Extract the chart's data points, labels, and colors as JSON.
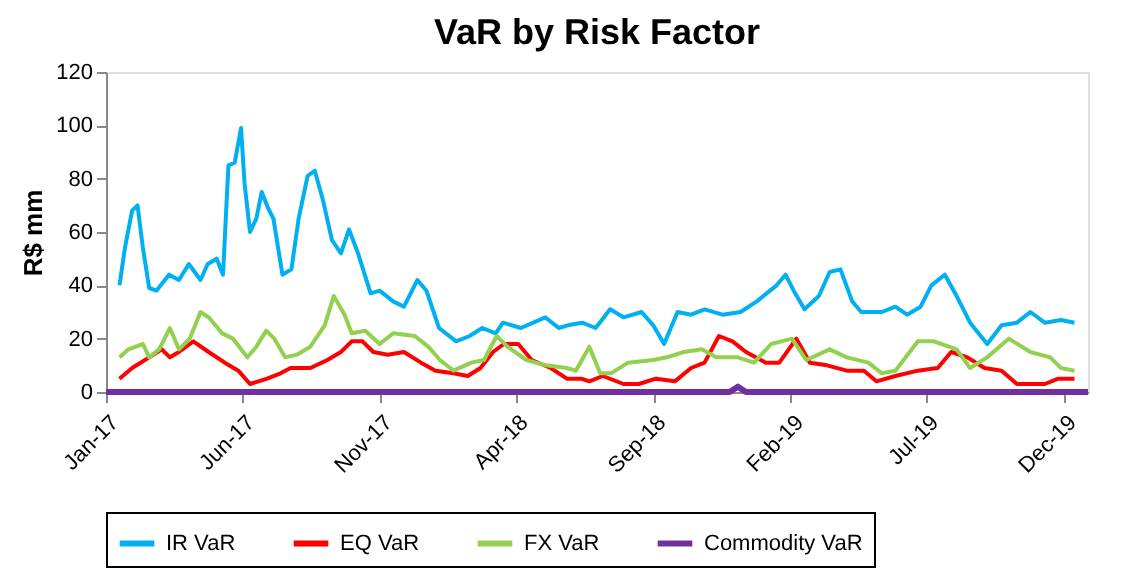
{
  "chart_data": {
    "type": "line",
    "title": "VaR by Risk Factor",
    "ylabel": "R$ mm",
    "xlim": [
      "2017-01-01",
      "2019-12-28"
    ],
    "ylim": [
      0,
      120
    ],
    "yticks": [
      0,
      20,
      40,
      60,
      80,
      100,
      120
    ],
    "xticks": [
      {
        "value": "2017-01-01",
        "label": "Jan-17"
      },
      {
        "value": "2017-06-01",
        "label": "Jun-17"
      },
      {
        "value": "2017-11-01",
        "label": "Nov-17"
      },
      {
        "value": "2018-04-01",
        "label": "Apr-18"
      },
      {
        "value": "2018-09-01",
        "label": "Sep-18"
      },
      {
        "value": "2019-02-01",
        "label": "Feb-19"
      },
      {
        "value": "2019-07-01",
        "label": "Jul-19"
      },
      {
        "value": "2019-12-01",
        "label": "Dec-19"
      }
    ],
    "grid": false,
    "legend": "bottom",
    "marker": "none",
    "line_style": "solid",
    "series": [
      {
        "name": "IR VaR",
        "color": "#00b0f0",
        "x": [
          "2017-01-16",
          "2017-01-22",
          "2017-01-30",
          "2017-02-05",
          "2017-02-11",
          "2017-02-18",
          "2017-02-26",
          "2017-03-12",
          "2017-03-23",
          "2017-04-03",
          "2017-04-16",
          "2017-04-24",
          "2017-05-04",
          "2017-05-11",
          "2017-05-17",
          "2017-05-24",
          "2017-05-31",
          "2017-06-04",
          "2017-06-10",
          "2017-06-17",
          "2017-06-23",
          "2017-06-30",
          "2017-07-06",
          "2017-07-16",
          "2017-07-26",
          "2017-08-03",
          "2017-08-13",
          "2017-08-21",
          "2017-08-30",
          "2017-09-09",
          "2017-09-19",
          "2017-09-28",
          "2017-10-08",
          "2017-10-22",
          "2017-11-01",
          "2017-11-16",
          "2017-11-28",
          "2017-12-13",
          "2017-12-23",
          "2018-01-06",
          "2018-01-25",
          "2018-02-09",
          "2018-02-23",
          "2018-03-10",
          "2018-03-18",
          "2018-04-07",
          "2018-05-04",
          "2018-05-19",
          "2018-05-29",
          "2018-06-14",
          "2018-06-29",
          "2018-07-15",
          "2018-07-30",
          "2018-08-19",
          "2018-09-01",
          "2018-09-13",
          "2018-09-28",
          "2018-10-13",
          "2018-10-28",
          "2018-11-17",
          "2018-12-07",
          "2018-12-25",
          "2019-01-16",
          "2019-01-26",
          "2019-02-04",
          "2019-02-16",
          "2019-03-04",
          "2019-03-16",
          "2019-03-28",
          "2019-04-10",
          "2019-04-20",
          "2019-05-13",
          "2019-05-28",
          "2019-06-10",
          "2019-06-25",
          "2019-07-07",
          "2019-07-22",
          "2019-08-04",
          "2019-08-19",
          "2019-09-07",
          "2019-09-23",
          "2019-10-10",
          "2019-10-25",
          "2019-11-10",
          "2019-11-28",
          "2019-12-13"
        ],
        "values": [
          40,
          54,
          68,
          70,
          54,
          39,
          38,
          44,
          42,
          48,
          42,
          48,
          50,
          44,
          85,
          86,
          99,
          78,
          60,
          65,
          75,
          69,
          65,
          44,
          46,
          65,
          81,
          83,
          72,
          57,
          52,
          61,
          52,
          37,
          38,
          34,
          32,
          42,
          38,
          24,
          19,
          21,
          24,
          22,
          26,
          24,
          28,
          24,
          25,
          26,
          24,
          31,
          28,
          30,
          25,
          18,
          30,
          29,
          31,
          29,
          30,
          34,
          40,
          44,
          38,
          31,
          36,
          45,
          46,
          34,
          30,
          30,
          32,
          29,
          32,
          40,
          44,
          36,
          26,
          18,
          25,
          26,
          30,
          26,
          27,
          26
        ]
      },
      {
        "name": "EQ VaR",
        "color": "#ff0000",
        "x": [
          "2017-01-16",
          "2017-01-30",
          "2017-02-18",
          "2017-03-04",
          "2017-03-13",
          "2017-03-23",
          "2017-04-08",
          "2017-04-25",
          "2017-05-13",
          "2017-05-28",
          "2017-06-10",
          "2017-06-29",
          "2017-07-14",
          "2017-07-25",
          "2017-08-16",
          "2017-09-04",
          "2017-09-19",
          "2017-10-01",
          "2017-10-13",
          "2017-10-25",
          "2017-11-10",
          "2017-11-28",
          "2017-12-17",
          "2018-01-02",
          "2018-01-22",
          "2018-02-07",
          "2018-02-21",
          "2018-03-07",
          "2018-03-19",
          "2018-04-04",
          "2018-04-19",
          "2018-05-10",
          "2018-05-28",
          "2018-06-13",
          "2018-06-22",
          "2018-07-07",
          "2018-07-30",
          "2018-08-16",
          "2018-09-04",
          "2018-09-25",
          "2018-10-13",
          "2018-10-28",
          "2018-11-13",
          "2018-11-28",
          "2018-12-13",
          "2019-01-04",
          "2019-01-19",
          "2019-02-07",
          "2019-02-22",
          "2019-03-13",
          "2019-04-04",
          "2019-04-23",
          "2019-05-07",
          "2019-05-28",
          "2019-06-22",
          "2019-07-14",
          "2019-07-29",
          "2019-08-16",
          "2019-09-04",
          "2019-09-23",
          "2019-10-10",
          "2019-11-10",
          "2019-11-25",
          "2019-12-13"
        ],
        "values": [
          5,
          9,
          13,
          16,
          13,
          15,
          19,
          15,
          11,
          8,
          3,
          5,
          7,
          9,
          9,
          12,
          15,
          19,
          19,
          15,
          14,
          15,
          11,
          8,
          7,
          6,
          9,
          15,
          18,
          18,
          12,
          9,
          5,
          5,
          4,
          6,
          3,
          3,
          5,
          4,
          9,
          11,
          21,
          19,
          15,
          11,
          11,
          20,
          11,
          10,
          8,
          8,
          4,
          6,
          8,
          9,
          15,
          13,
          9,
          8,
          3,
          3,
          5,
          5
        ]
      },
      {
        "name": "FX VaR",
        "color": "#92d050",
        "x": [
          "2017-01-16",
          "2017-01-26",
          "2017-02-11",
          "2017-02-18",
          "2017-03-01",
          "2017-03-13",
          "2017-03-23",
          "2017-04-04",
          "2017-04-16",
          "2017-04-25",
          "2017-05-10",
          "2017-05-22",
          "2017-06-07",
          "2017-06-17",
          "2017-06-28",
          "2017-07-07",
          "2017-07-19",
          "2017-08-01",
          "2017-08-16",
          "2017-09-01",
          "2017-09-11",
          "2017-09-23",
          "2017-10-01",
          "2017-10-16",
          "2017-11-01",
          "2017-11-16",
          "2017-12-10",
          "2017-12-25",
          "2018-01-07",
          "2018-01-22",
          "2018-02-11",
          "2018-02-25",
          "2018-03-11",
          "2018-03-23",
          "2018-04-13",
          "2018-05-05",
          "2018-05-28",
          "2018-06-07",
          "2018-06-22",
          "2018-07-04",
          "2018-07-16",
          "2018-08-04",
          "2018-09-01",
          "2018-09-16",
          "2018-10-05",
          "2018-10-25",
          "2018-11-10",
          "2018-12-04",
          "2018-12-22",
          "2019-01-10",
          "2019-02-02",
          "2019-02-18",
          "2019-03-16",
          "2019-04-04",
          "2019-04-28",
          "2019-05-13",
          "2019-05-28",
          "2019-06-22",
          "2019-07-10",
          "2019-08-04",
          "2019-08-19",
          "2019-09-07",
          "2019-10-01",
          "2019-10-25",
          "2019-11-16",
          "2019-11-28",
          "2019-12-13"
        ],
        "values": [
          13,
          16,
          18,
          13,
          16,
          24,
          16,
          20,
          30,
          28,
          22,
          20,
          13,
          17,
          23,
          20,
          13,
          14,
          17,
          25,
          36,
          29,
          22,
          23,
          18,
          22,
          21,
          17,
          12,
          8,
          11,
          12,
          21,
          17,
          12,
          10,
          9,
          8,
          17,
          7,
          7,
          11,
          12,
          13,
          15,
          16,
          13,
          13,
          11,
          18,
          20,
          12,
          16,
          13,
          11,
          7,
          8,
          19,
          19,
          16,
          9,
          13,
          20,
          15,
          13,
          9,
          8
        ]
      },
      {
        "name": "Commodity VaR",
        "color": "#7030a0",
        "x": [
          "2017-01-01",
          "2018-11-25",
          "2018-12-04",
          "2018-12-13",
          "2019-12-28"
        ],
        "values": [
          0,
          0,
          2,
          0,
          0
        ]
      }
    ]
  }
}
